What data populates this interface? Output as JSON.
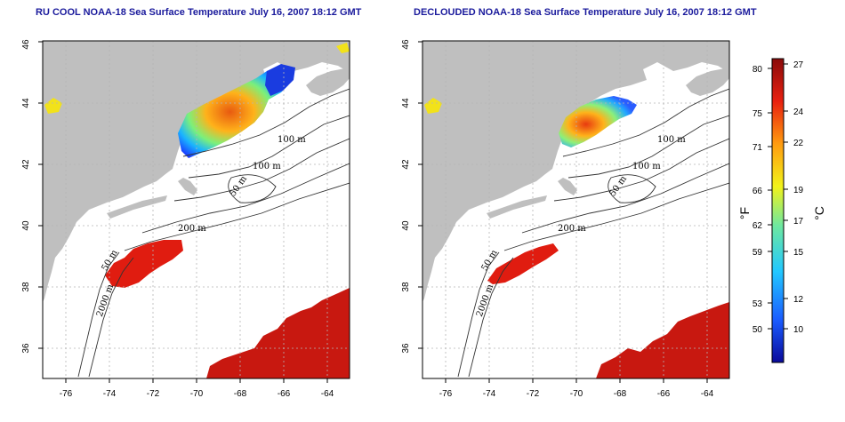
{
  "panels": [
    {
      "title": "RU COOL NOAA-18 Sea Surface Temperature July 16, 2007 18:12 GMT",
      "variant": "cloud-masked"
    },
    {
      "title": "DECLOUDED NOAA-18 Sea Surface Temperature July 16, 2007 18:12 GMT",
      "variant": "declouded"
    }
  ],
  "map_axes": {
    "x_ticks": [
      "-76",
      "-74",
      "-72",
      "-70",
      "-68",
      "-66",
      "-64"
    ],
    "y_ticks": [
      "36",
      "38",
      "40",
      "42",
      "44",
      "46"
    ],
    "lon_range": [
      -77,
      -63
    ],
    "lat_range": [
      35,
      46
    ]
  },
  "contour_labels": [
    "100 m",
    "100 m",
    "50 m",
    "200 m",
    "50 m",
    "2000 m"
  ],
  "colorbar": {
    "fahrenheit_unit": "°F",
    "celsius_unit": "°C",
    "fahrenheit_ticks": [
      "80",
      "75",
      "71",
      "66",
      "62",
      "59",
      "53",
      "50"
    ],
    "celsius_ticks": [
      "27",
      "24",
      "22",
      "19",
      "17",
      "15",
      "12",
      "10"
    ],
    "colors": [
      "#0a0a9a",
      "#1a5cff",
      "#22c8ff",
      "#6ee8a0",
      "#f2f21a",
      "#ff9b10",
      "#e82010",
      "#8a0a0a"
    ]
  },
  "colors": {
    "land": "#bfbfbf",
    "water": "#ffffff",
    "title": "#1a1a9c",
    "grid": "#b5b5b5"
  }
}
